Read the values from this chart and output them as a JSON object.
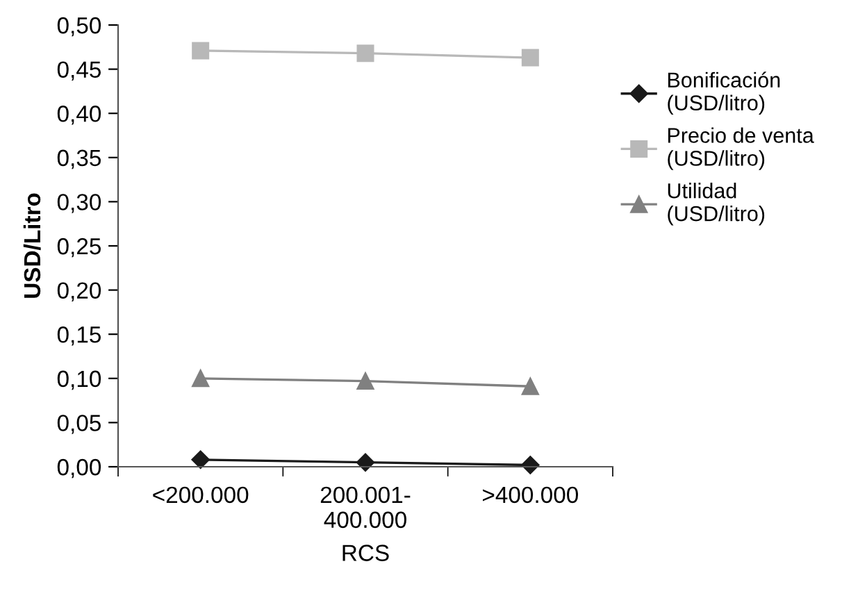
{
  "chart_data": {
    "type": "line",
    "xlabel": "RCS",
    "ylabel": "USD/Litro",
    "categories": [
      "<200.000",
      "200.001-\n400.000",
      ">400.000"
    ],
    "series": [
      {
        "name": "Bonificación\n(USD/litro)",
        "color": "#1a1a1a",
        "marker": "diamond",
        "values": [
          0.008,
          0.005,
          0.002
        ]
      },
      {
        "name": "Precio de venta\n(USD/litro)",
        "color": "#b8b8b8",
        "marker": "square",
        "values": [
          0.471,
          0.468,
          0.463
        ]
      },
      {
        "name": "Utilidad\n(USD/litro)",
        "color": "#808080",
        "marker": "triangle",
        "values": [
          0.1,
          0.097,
          0.091
        ]
      }
    ],
    "ylim": [
      0,
      0.5
    ],
    "yticks": [
      {
        "value": 0,
        "label": "0,00"
      },
      {
        "value": 0.05,
        "label": "0,05"
      },
      {
        "value": 0.1,
        "label": "0,10"
      },
      {
        "value": 0.15,
        "label": "0,15"
      },
      {
        "value": 0.2,
        "label": "0,20"
      },
      {
        "value": 0.25,
        "label": "0,25"
      },
      {
        "value": 0.3,
        "label": "0,30"
      },
      {
        "value": 0.35,
        "label": "0,35"
      },
      {
        "value": 0.4,
        "label": "0,40"
      },
      {
        "value": 0.45,
        "label": "0,45"
      },
      {
        "value": 0.5,
        "label": "0,50"
      }
    ],
    "grid": false,
    "legend": "right",
    "line_style": "solid"
  }
}
